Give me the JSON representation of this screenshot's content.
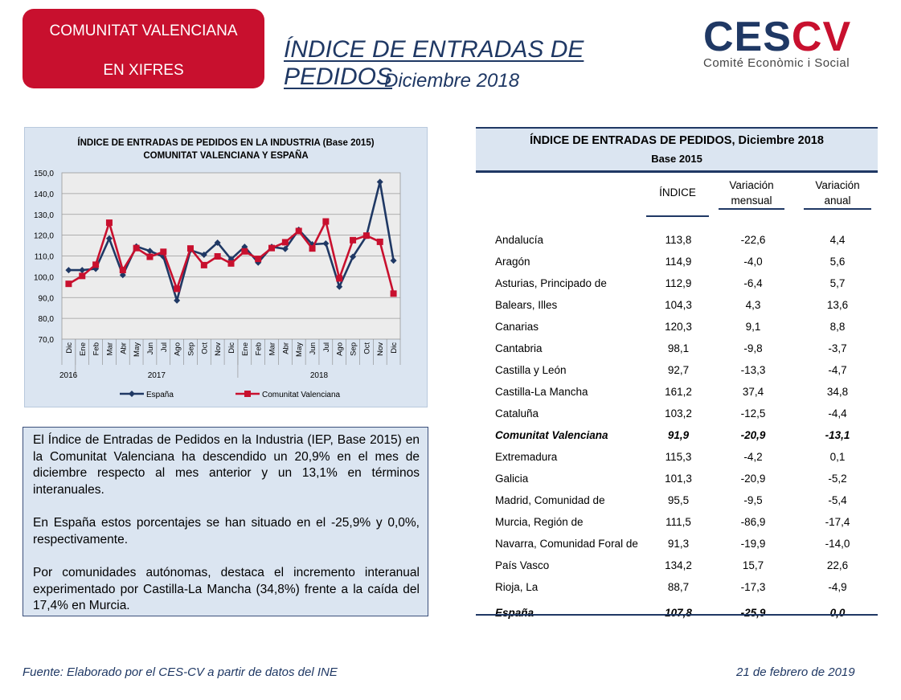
{
  "header": {
    "badge_line1": "COMUNITAT VALENCIANA",
    "badge_line2": "EN XIFRES",
    "title": "ÍNDICE DE ENTRADAS DE PEDIDOS",
    "subtitle": "Diciembre 2018",
    "logo_text_a": "CES",
    "logo_text_b": "CV",
    "logo_tagline": "Comité Econòmic i Social"
  },
  "colors": {
    "badge": "#c8102e",
    "navy": "#1f3864",
    "panel": "#dbe5f1",
    "series_espana": "#1f3864",
    "series_cv": "#c8102e"
  },
  "chart_data": {
    "type": "line",
    "title": "ÍNDICE DE ENTRADAS DE PEDIDOS EN LA INDUSTRIA (Base 2015)",
    "subtitle": "COMUNITAT  VALENCIANA  Y ESPAÑA",
    "categories": [
      "Dic",
      "Ene",
      "Feb",
      "Mar",
      "Abr",
      "May",
      "Jun",
      "Jul",
      "Ago",
      "Sep",
      "Oct",
      "Nov",
      "Dic",
      "Ene",
      "Feb",
      "Mar",
      "Abr",
      "May",
      "Jun",
      "Jul",
      "Ago",
      "Sep",
      "Oct",
      "Nov",
      "Dic"
    ],
    "year_labels": [
      {
        "label": "2016",
        "index": 0
      },
      {
        "label": "2017",
        "index": 6.5
      },
      {
        "label": "2018",
        "index": 18.5
      }
    ],
    "yticks": [
      "150,0",
      "140,0",
      "130,0",
      "120,0",
      "110,0",
      "100,0",
      "90,0",
      "80,0",
      "70,0"
    ],
    "ylim": [
      70,
      150
    ],
    "grid": true,
    "legend": "bottom",
    "series": [
      {
        "name": "España",
        "color": "#1f3864",
        "marker": "diamond",
        "values": [
          103.2,
          103.2,
          103.8,
          118.4,
          100.8,
          114.6,
          112.4,
          109.6,
          88.6,
          112.8,
          110.6,
          116.4,
          108.4,
          114.4,
          106.8,
          114.4,
          113.4,
          122.6,
          115.6,
          116.0,
          95.2,
          109.6,
          119.6,
          145.6,
          107.8
        ]
      },
      {
        "name": "Comunitat Valenciana",
        "color": "#c8102e",
        "marker": "square",
        "values": [
          96.6,
          100.4,
          105.8,
          126.0,
          103.2,
          113.8,
          109.6,
          112.0,
          94.2,
          113.6,
          105.6,
          109.8,
          106.4,
          112.2,
          108.6,
          113.8,
          116.6,
          122.0,
          113.6,
          126.6,
          99.2,
          117.6,
          119.8,
          116.8,
          91.9
        ]
      }
    ]
  },
  "summary": {
    "p1": "El Índice de Entradas de Pedidos en la Industria (IEP, Base 2015) en la Comunitat Valenciana ha descendido un 20,9% en el mes de diciembre respecto al mes anterior y un 13,1% en términos interanuales.",
    "p2": "En España estos porcentajes se han situado en el -25,9% y 0,0%, respectivamente.",
    "p3": "Por comunidades autónomas, destaca el incremento interanual experimentado por Castilla-La Mancha (34,8%) frente a la caída del 17,4% en Murcia."
  },
  "table": {
    "title": "ÍNDICE DE ENTRADAS DE PEDIDOS, Diciembre 2018",
    "subtitle": "Base 2015",
    "col_indice": "ÍNDICE",
    "col_mensual_1": "Variación",
    "col_mensual_2": "mensual",
    "col_anual_1": "Variación",
    "col_anual_2": "anual",
    "rows": [
      {
        "name": "Andalucía",
        "indice": "113,8",
        "mensual": "-22,6",
        "anual": "4,4"
      },
      {
        "name": "Aragón",
        "indice": "114,9",
        "mensual": "-4,0",
        "anual": "5,6"
      },
      {
        "name": "Asturias, Principado de",
        "indice": "112,9",
        "mensual": "-6,4",
        "anual": "5,7"
      },
      {
        "name": "Balears, Illes",
        "indice": "104,3",
        "mensual": "4,3",
        "anual": "13,6"
      },
      {
        "name": "Canarias",
        "indice": "120,3",
        "mensual": "9,1",
        "anual": "8,8"
      },
      {
        "name": "Cantabria",
        "indice": "98,1",
        "mensual": "-9,8",
        "anual": "-3,7"
      },
      {
        "name": "Castilla y León",
        "indice": "92,7",
        "mensual": "-13,3",
        "anual": "-4,7"
      },
      {
        "name": "Castilla-La Mancha",
        "indice": "161,2",
        "mensual": "37,4",
        "anual": "34,8"
      },
      {
        "name": "Cataluña",
        "indice": "103,2",
        "mensual": "-12,5",
        "anual": "-4,4"
      },
      {
        "name": "Comunitat Valenciana",
        "indice": "91,9",
        "mensual": "-20,9",
        "anual": "-13,1",
        "highlight": true
      },
      {
        "name": "Extremadura",
        "indice": "115,3",
        "mensual": "-4,2",
        "anual": "0,1"
      },
      {
        "name": "Galicia",
        "indice": "101,3",
        "mensual": "-20,9",
        "anual": "-5,2"
      },
      {
        "name": "Madrid, Comunidad de",
        "indice": "95,5",
        "mensual": "-9,5",
        "anual": "-5,4"
      },
      {
        "name": "Murcia, Región de",
        "indice": "111,5",
        "mensual": "-86,9",
        "anual": "-17,4"
      },
      {
        "name": "Navarra, Comunidad Foral de",
        "indice": "91,3",
        "mensual": "-19,9",
        "anual": "-14,0"
      },
      {
        "name": "País Vasco",
        "indice": "134,2",
        "mensual": "15,7",
        "anual": "22,6"
      },
      {
        "name": "Rioja, La",
        "indice": "88,7",
        "mensual": "-17,3",
        "anual": "-4,9"
      },
      {
        "name": "España",
        "indice": "107,8",
        "mensual": "-25,9",
        "anual": "0,0",
        "highlight": true
      }
    ]
  },
  "footer": {
    "source": "Fuente: Elaborado por el CES-CV a partir de datos del INE",
    "date": "21 de febrero de 2019"
  }
}
